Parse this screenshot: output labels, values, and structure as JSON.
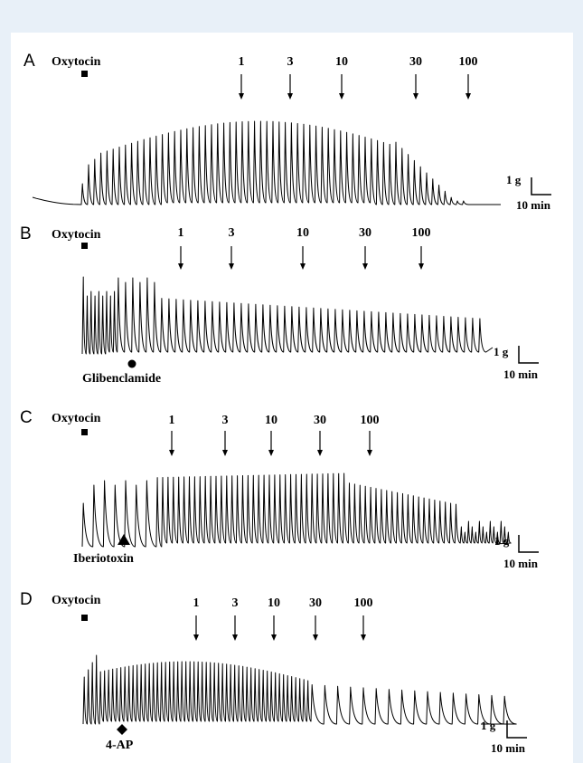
{
  "chart_data": [
    {
      "type": "line",
      "panel": "A",
      "agonist_label": "Oxytocin",
      "concentrations": [
        "1",
        "3",
        "10",
        "30",
        "100"
      ],
      "scale": {
        "force": "1 g",
        "time": "10 min"
      }
    },
    {
      "type": "line",
      "panel": "B",
      "agonist_label": "Oxytocin",
      "blocker_label": "Glibenclamide",
      "blocker_marker": "circle",
      "concentrations": [
        "1",
        "3",
        "10",
        "30",
        "100"
      ],
      "scale": {
        "force": "1 g",
        "time": "10 min"
      }
    },
    {
      "type": "line",
      "panel": "C",
      "agonist_label": "Oxytocin",
      "blocker_label": "Iberiotoxin",
      "blocker_marker": "triangle",
      "concentrations": [
        "1",
        "3",
        "10",
        "30",
        "100"
      ],
      "scale": {
        "force": "1 g",
        "time": "10 min"
      }
    },
    {
      "type": "line",
      "panel": "D",
      "agonist_label": "Oxytocin",
      "blocker_label": "4-AP",
      "blocker_marker": "diamond",
      "concentrations": [
        "1",
        "3",
        "10",
        "30",
        "100"
      ],
      "scale": {
        "force": "1 g",
        "time": "10 min"
      }
    }
  ]
}
